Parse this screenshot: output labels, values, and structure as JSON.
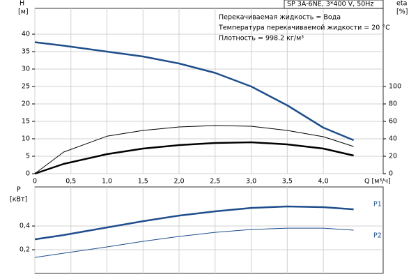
{
  "chart_data": [
    {
      "type": "line",
      "title": "SP 3A-6NE, 3*400 V, 50Hz",
      "annotations": [
        "Перекачиваемая жидкость = Вода",
        "Температура перекачиваемой жидкости = 20 °C",
        "Плотность = 998.2 кг/м³"
      ],
      "ylabel": "H",
      "yunit": "[м]",
      "y2label": "eta",
      "y2unit": "[%]",
      "xlabel": "Q [м³/ч]",
      "x": [
        0,
        0.4,
        1.0,
        1.5,
        2.0,
        2.5,
        3.0,
        3.5,
        4.0,
        4.42
      ],
      "xlim": [
        0,
        4.83
      ],
      "xticks": [
        0,
        {
          "value": 0.5,
          "label": "0,5"
        },
        {
          "value": 1.0,
          "label": "1,0"
        },
        {
          "value": 1.5,
          "label": "1,5"
        },
        {
          "value": 2.0,
          "label": "2,0"
        },
        {
          "value": 2.5,
          "label": "2,5"
        },
        {
          "value": 3.0,
          "label": "3,0"
        },
        {
          "value": 3.5,
          "label": "3,5"
        },
        {
          "value": 4.0,
          "label": "4,0"
        }
      ],
      "ylim": [
        0,
        47.4
      ],
      "yticks": [
        0,
        5,
        10,
        15,
        20,
        25,
        30,
        35,
        40
      ],
      "y2lim": [
        0,
        189.6
      ],
      "y2ticks": [
        0,
        20,
        40,
        60,
        80,
        100
      ],
      "grid": true,
      "series": [
        {
          "color": "#1f4e8c",
          "line_width": 2.5,
          "values": [
            37.7,
            36.7,
            35,
            33.6,
            31.6,
            28.9,
            25,
            19.6,
            13.2,
            9.6
          ]
        },
        {
          "color": "#000000",
          "line_width": 1,
          "axis": "y2",
          "values": [
            0,
            24.8,
            43,
            49.6,
            53.6,
            55.2,
            54.4,
            49.6,
            42.4,
            31.2
          ]
        },
        {
          "color": "#000000",
          "line_width": 2.5,
          "axis": "y2",
          "values": [
            0,
            11.2,
            22.4,
            28.8,
            32.8,
            35.2,
            36,
            33.6,
            28.8,
            20.8
          ]
        }
      ]
    },
    {
      "type": "line",
      "ylabel": "P",
      "yunit": "[кВт]",
      "x": [
        0,
        0.4,
        1.0,
        1.5,
        2.0,
        2.5,
        3.0,
        3.5,
        4.0,
        4.42
      ],
      "xlim": [
        0,
        4.83
      ],
      "ylim": [
        0,
        0.73
      ],
      "yticks": [
        {
          "value": 0.2,
          "label": "0,2"
        },
        {
          "value": 0.4,
          "label": "0,4"
        }
      ],
      "grid": true,
      "series": [
        {
          "name": "P1",
          "color": "#1f4e8c",
          "line_width": 2.5,
          "values": [
            0.288,
            0.324,
            0.388,
            0.441,
            0.488,
            0.524,
            0.553,
            0.565,
            0.559,
            0.541
          ]
        },
        {
          "name": "P2",
          "color": "#1f4e8c",
          "line_width": 1,
          "values": [
            0.135,
            0.171,
            0.224,
            0.271,
            0.312,
            0.347,
            0.371,
            0.382,
            0.382,
            0.365
          ]
        }
      ]
    }
  ]
}
